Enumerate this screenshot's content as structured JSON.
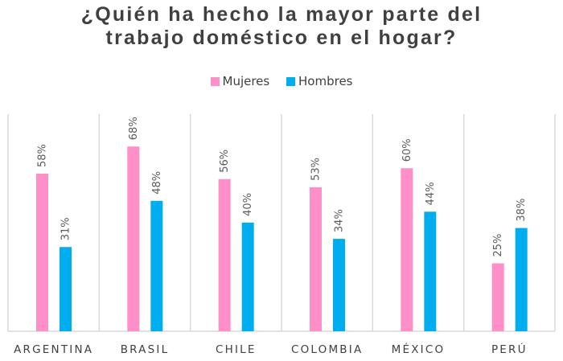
{
  "chart_data": {
    "type": "bar",
    "title_lines": [
      "¿Quién ha hecho la mayor parte del",
      "trabajo doméstico en el hogar?"
    ],
    "categories": [
      "ARGENTINA",
      "BRASIL",
      "CHILE",
      "COLOMBIA",
      "MÉXICO",
      "PERÚ"
    ],
    "series": [
      {
        "name": "Mujeres",
        "color": "#FF8FC8",
        "values": [
          58,
          68,
          56,
          53,
          60,
          25
        ]
      },
      {
        "name": "Hombres",
        "color": "#00AEEF",
        "values": [
          31,
          48,
          40,
          34,
          44,
          38
        ]
      }
    ],
    "value_suffix": "%",
    "ylim": [
      0,
      80
    ],
    "legend_position": "top-center",
    "grid": false
  }
}
